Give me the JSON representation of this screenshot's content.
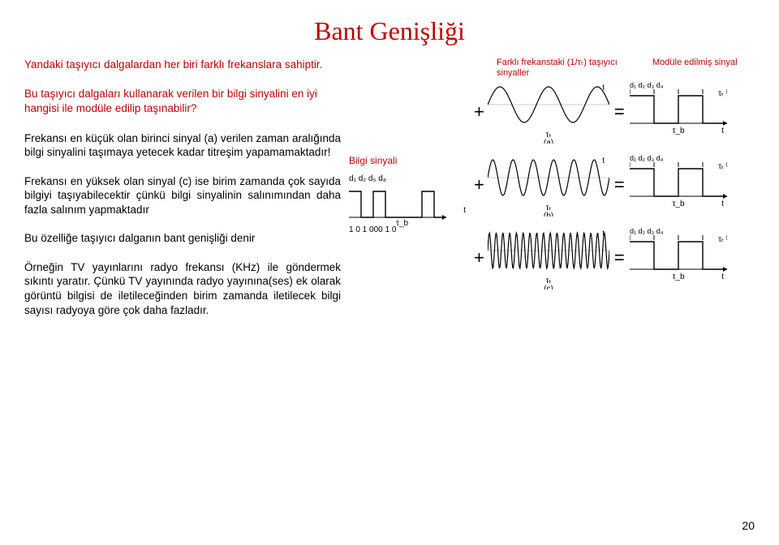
{
  "title": "Bant Genişliği",
  "left": {
    "p1": "Yandaki taşıyıcı dalgalardan her biri farklı frekanslara sahiptir.",
    "p2": "Bu taşıyıcı dalgaları kullanarak verilen bir bilgi sinyalini en iyi hangisi ile modüle edilip taşınabilir?",
    "p3": "Frekansı en küçük olan birinci sinyal (a) verilen zaman aralığında bilgi sinyalini taşımaya yetecek kadar titreşim yapamamaktadır!",
    "p4": "Frekansı en yüksek olan sinyal (c) ise birim zamanda çok sayıda bilgiyi taşıyabilecektir çünkü bilgi sinyalinin salınımından daha fazla salınım yapmaktadır",
    "p5": "Bu özelliğe taşıyıcı dalganın bant genişliği denir",
    "p6": "Örneğin TV yayınlarını radyo frekansı (KHz) ile göndermek sıkıntı yaratır. Çünkü TV yayınında radyo yayınına(ses) ek olarak görüntü bilgisi de iletileceğinden birim zamanda iletilecek bilgi sayısı radyoya göre çok daha fazladır."
  },
  "mid": {
    "bilgi_label": "Bilgi sinyali",
    "data_bits_label": "d₁ d₂ d₅ d₈",
    "bits_text": "1 0 1 000 1 0",
    "tau_b": "τ_b",
    "t": "t"
  },
  "right": {
    "header_left": "Farklı frekanstaki (1/τₜ) taşıyıcı sinyaller",
    "header_right": "Modüle edilmiş sinyal",
    "mod_bits": "d₁ d₂ d₃ d₄",
    "tau_t": "τₜ",
    "tau_b": "τ_b",
    "t": "t",
    "rows": [
      {
        "label": "(a)",
        "cycles": 2.5
      },
      {
        "label": "(b)",
        "cycles": 6
      },
      {
        "label": "(c)",
        "cycles": 18
      }
    ]
  },
  "style": {
    "red": "#c00000",
    "black": "#000000",
    "carrier_w": 150,
    "carrier_h": 60,
    "mod_w": 120,
    "mod_h": 60,
    "data_w": 120,
    "data_h": 50,
    "data_bits": [
      1,
      0,
      1,
      0,
      0,
      0,
      1,
      0
    ],
    "mod_bits": [
      1,
      0,
      1,
      0
    ]
  },
  "page_number": "20"
}
